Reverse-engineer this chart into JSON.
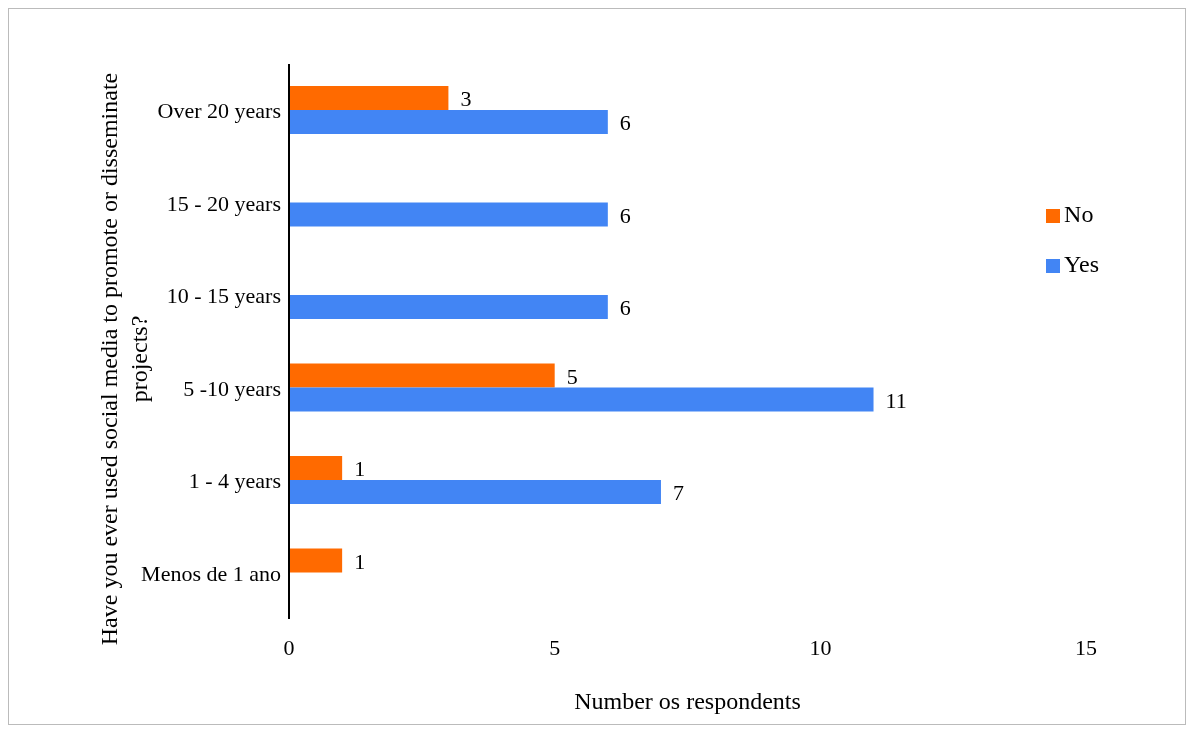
{
  "chart_data": {
    "type": "bar",
    "orientation": "horizontal",
    "xlabel": "Number os respondents",
    "ylabel": "Have you ever used social media to promote or disseminate projects?",
    "categories": [
      "Over 20 years",
      "15 - 20 years",
      "10 - 15 years",
      "5 -10 years",
      "1 - 4 years",
      "Menos de 1 ano"
    ],
    "series": [
      {
        "name": "No",
        "color": "#ff6a00",
        "values": [
          3,
          null,
          null,
          5,
          1,
          1
        ]
      },
      {
        "name": "Yes",
        "color": "#4285f4",
        "values": [
          6,
          6,
          6,
          11,
          7,
          null
        ]
      }
    ],
    "xlim": [
      0,
      15
    ],
    "xticks": [
      0,
      5,
      10,
      15
    ],
    "grid": false,
    "legend": "right",
    "data_labels": true
  }
}
